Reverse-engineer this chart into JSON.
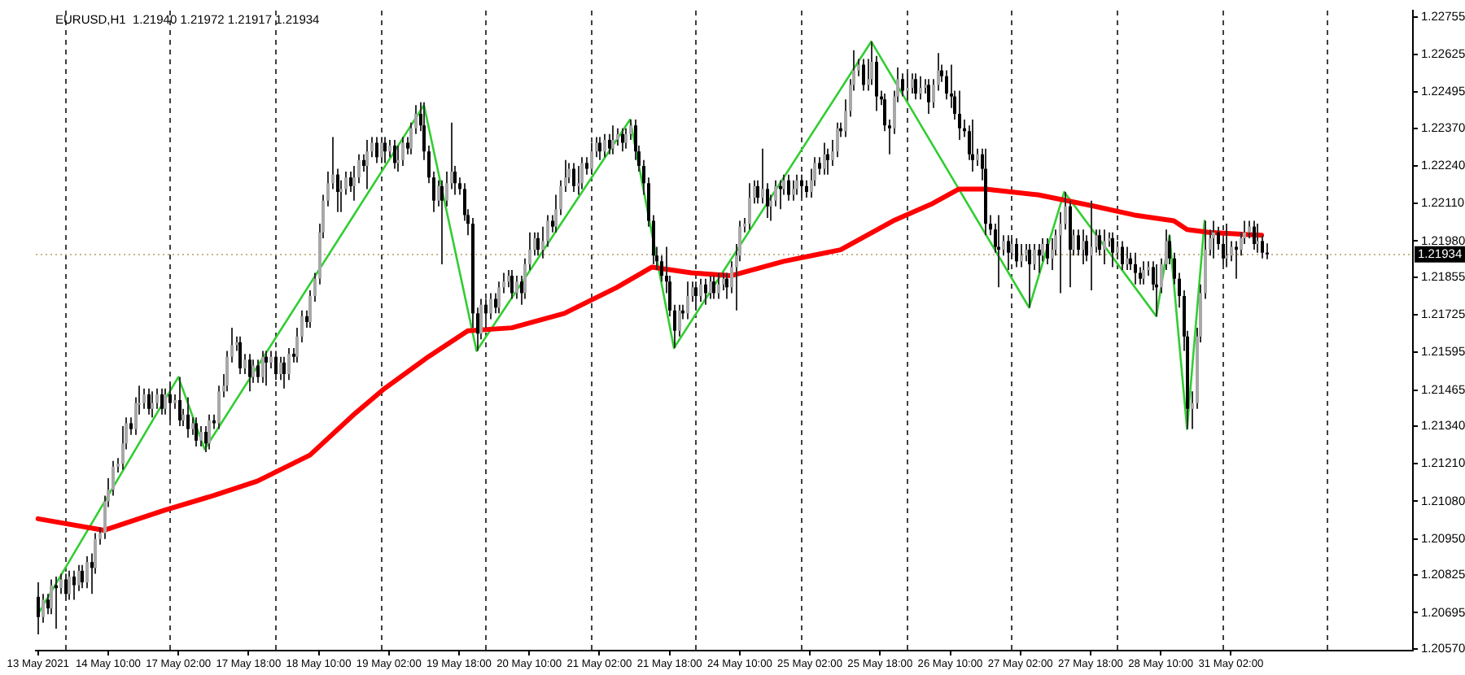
{
  "chart_data": {
    "type": "candlestick",
    "title": "EURUSD,H1  1.21940 1.21972 1.21917 1.21934",
    "categories": [
      "13 May 2021",
      null,
      null,
      null,
      null,
      null,
      null,
      null,
      null,
      null,
      null,
      null,
      null,
      null,
      null,
      null,
      "14 May 10:00",
      null,
      null,
      null,
      null,
      null,
      null,
      null,
      null,
      null,
      null,
      null,
      null,
      null,
      null,
      null,
      "17 May 02:00",
      null,
      null,
      null,
      null,
      null,
      null,
      null,
      null,
      null,
      null,
      null,
      null,
      null,
      null,
      null,
      "17 May 18:00",
      null,
      null,
      null,
      null,
      null,
      null,
      null,
      null,
      null,
      null,
      null,
      null,
      null,
      null,
      null,
      "18 May 10:00",
      null,
      null,
      null,
      null,
      null,
      null,
      null,
      null,
      null,
      null,
      null,
      null,
      null,
      null,
      null,
      "19 May 02:00",
      null,
      null,
      null,
      null,
      null,
      null,
      null,
      null,
      null,
      null,
      null,
      null,
      null,
      null,
      null,
      "19 May 18:00",
      null,
      null,
      null,
      null,
      null,
      null,
      null,
      null,
      null,
      null,
      null,
      null,
      null,
      null,
      null,
      "20 May 10:00",
      null,
      null,
      null,
      null,
      null,
      null,
      null,
      null,
      null,
      null,
      null,
      null,
      null,
      null,
      null,
      "21 May 02:00",
      null,
      null,
      null,
      null,
      null,
      null,
      null,
      null,
      null,
      null,
      null,
      null,
      null,
      null,
      null,
      "21 May 18:00",
      null,
      null,
      null,
      null,
      null,
      null,
      null,
      null,
      null,
      null,
      null,
      null,
      null,
      null,
      null,
      "24 May 10:00",
      null,
      null,
      null,
      null,
      null,
      null,
      null,
      null,
      null,
      null,
      null,
      null,
      null,
      null,
      null,
      "25 May 02:00",
      null,
      null,
      null,
      null,
      null,
      null,
      null,
      null,
      null,
      null,
      null,
      null,
      null,
      null,
      null,
      "25 May 18:00",
      null,
      null,
      null,
      null,
      null,
      null,
      null,
      null,
      null,
      null,
      null,
      null,
      null,
      null,
      null,
      "26 May 10:00",
      null,
      null,
      null,
      null,
      null,
      null,
      null,
      null,
      null,
      null,
      null,
      null,
      null,
      null,
      null,
      "27 May 02:00",
      null,
      null,
      null,
      null,
      null,
      null,
      null,
      null,
      null,
      null,
      null,
      null,
      null,
      null,
      null,
      "27 May 18:00",
      null,
      null,
      null,
      null,
      null,
      null,
      null,
      null,
      null,
      null,
      null,
      null,
      null,
      null,
      null,
      "28 May 10:00",
      null,
      null,
      null,
      null,
      null,
      null,
      null,
      null,
      null,
      null,
      null,
      null,
      null,
      null,
      null,
      "31 May 02:00",
      null,
      null,
      null,
      null,
      null,
      null,
      null,
      null,
      null,
      null,
      null,
      null,
      null,
      null,
      null,
      null,
      null,
      null,
      null,
      null,
      null,
      null,
      null,
      null,
      null,
      null,
      null,
      null,
      null,
      null,
      null,
      null,
      null,
      null,
      null,
      null,
      null,
      null,
      null,
      null,
      null
    ],
    "ohlc": [
      [
        1.2075,
        1.208,
        1.2062,
        1.2068
      ],
      [
        1.2068,
        1.2076,
        1.2066,
        1.2074
      ],
      [
        1.2074,
        1.2076,
        1.2069,
        1.2071
      ],
      [
        1.2071,
        1.2081,
        1.2069,
        1.2079
      ],
      [
        1.2079,
        1.2082,
        1.2064,
        1.2078
      ],
      [
        1.2078,
        1.2083,
        1.2076,
        1.2081
      ],
      [
        1.2081,
        1.2083,
        1.2074,
        1.2076
      ],
      [
        1.2076,
        1.2084,
        1.2074,
        1.2082
      ],
      [
        1.2082,
        1.2084,
        1.2074,
        1.2079
      ],
      [
        1.2079,
        1.2086,
        1.2077,
        1.2084
      ],
      [
        1.2084,
        1.2086,
        1.2078,
        1.208
      ],
      [
        1.208,
        1.2089,
        1.2078,
        1.2087
      ],
      [
        1.2087,
        1.209,
        1.2076,
        1.2085
      ],
      [
        1.2085,
        1.2097,
        1.2083,
        1.2095
      ],
      [
        1.2095,
        1.2099,
        1.2093,
        1.2097
      ],
      [
        1.2097,
        1.211,
        1.2095,
        1.2108
      ],
      [
        1.2108,
        1.2116,
        1.2106,
        1.2112
      ],
      [
        1.2112,
        1.2122,
        1.211,
        1.212
      ],
      [
        1.212,
        1.2123,
        1.2118,
        1.2121
      ],
      [
        1.2121,
        1.2134,
        1.2119,
        1.2128
      ],
      [
        1.2128,
        1.2137,
        1.2126,
        1.2135
      ],
      [
        1.2135,
        1.2137,
        1.2131,
        1.2133
      ],
      [
        1.2133,
        1.2144,
        1.2131,
        1.2142
      ],
      [
        1.2142,
        1.2148,
        1.2138,
        1.2142
      ],
      [
        1.2142,
        1.2147,
        1.214,
        1.2145
      ],
      [
        1.2145,
        1.2147,
        1.2138,
        1.214
      ],
      [
        1.214,
        1.2146,
        1.2137,
        1.2142
      ],
      [
        1.2142,
        1.2147,
        1.214,
        1.2145
      ],
      [
        1.2145,
        1.2147,
        1.2138,
        1.214
      ],
      [
        1.214,
        1.2147,
        1.2138,
        1.2145
      ],
      [
        1.2145,
        1.2149,
        1.2136,
        1.2142
      ],
      [
        1.2142,
        1.2145,
        1.214,
        1.2143
      ],
      [
        1.2143,
        1.2151,
        1.2134,
        1.2136
      ],
      [
        1.2136,
        1.214,
        1.2134,
        1.2138
      ],
      [
        1.2138,
        1.2144,
        1.213,
        1.2133
      ],
      [
        1.2133,
        1.2137,
        1.2131,
        1.2135
      ],
      [
        1.2135,
        1.2137,
        1.2127,
        1.2129
      ],
      [
        1.2129,
        1.2134,
        1.2127,
        1.2132
      ],
      [
        1.2132,
        1.2134,
        1.2125,
        1.2128
      ],
      [
        1.2128,
        1.2138,
        1.2126,
        1.2136
      ],
      [
        1.2136,
        1.2138,
        1.2133,
        1.2135
      ],
      [
        1.2135,
        1.2148,
        1.2133,
        1.2146
      ],
      [
        1.2146,
        1.2152,
        1.2144,
        1.2148
      ],
      [
        1.2148,
        1.216,
        1.2146,
        1.2158
      ],
      [
        1.2158,
        1.2168,
        1.2156,
        1.2162
      ],
      [
        1.2162,
        1.2165,
        1.216,
        1.2163
      ],
      [
        1.2163,
        1.2165,
        1.2152,
        1.2154
      ],
      [
        1.2154,
        1.2159,
        1.2152,
        1.2157
      ],
      [
        1.2157,
        1.2159,
        1.2146,
        1.2151
      ],
      [
        1.2151,
        1.2157,
        1.2149,
        1.2155
      ],
      [
        1.2155,
        1.2157,
        1.2149,
        1.2151
      ],
      [
        1.2151,
        1.216,
        1.2149,
        1.2158
      ],
      [
        1.2158,
        1.216,
        1.2148,
        1.2156
      ],
      [
        1.2156,
        1.216,
        1.2154,
        1.2158
      ],
      [
        1.2158,
        1.216,
        1.215,
        1.2152
      ],
      [
        1.2152,
        1.2158,
        1.215,
        1.2156
      ],
      [
        1.2156,
        1.2158,
        1.2147,
        1.2152
      ],
      [
        1.2152,
        1.2161,
        1.215,
        1.2159
      ],
      [
        1.2159,
        1.2161,
        1.2156,
        1.2158
      ],
      [
        1.2158,
        1.2168,
        1.2156,
        1.2165
      ],
      [
        1.2165,
        1.2174,
        1.2163,
        1.2172
      ],
      [
        1.2172,
        1.2174,
        1.2168,
        1.217
      ],
      [
        1.217,
        1.2181,
        1.2168,
        1.2179
      ],
      [
        1.2179,
        1.2187,
        1.2177,
        1.2185
      ],
      [
        1.2185,
        1.2204,
        1.2183,
        1.2201
      ],
      [
        1.2201,
        1.2214,
        1.2199,
        1.2212
      ],
      [
        1.2212,
        1.2222,
        1.221,
        1.2218
      ],
      [
        1.2218,
        1.2234,
        1.2216,
        1.2221
      ],
      [
        1.2221,
        1.2223,
        1.2208,
        1.2215
      ],
      [
        1.2215,
        1.2219,
        1.2208,
        1.2216
      ],
      [
        1.2216,
        1.2222,
        1.2214,
        1.222
      ],
      [
        1.222,
        1.2222,
        1.2215,
        1.2217
      ],
      [
        1.2217,
        1.2224,
        1.2212,
        1.222
      ],
      [
        1.222,
        1.2228,
        1.2218,
        1.2226
      ],
      [
        1.2226,
        1.2228,
        1.2222,
        1.2224
      ],
      [
        1.2224,
        1.2233,
        1.2216,
        1.2229
      ],
      [
        1.2229,
        1.2234,
        1.2227,
        1.2232
      ],
      [
        1.2232,
        1.2234,
        1.2225,
        1.2227
      ],
      [
        1.2227,
        1.2234,
        1.2225,
        1.2232
      ],
      [
        1.2232,
        1.2234,
        1.2225,
        1.2229
      ],
      [
        1.2229,
        1.2233,
        1.2227,
        1.2231
      ],
      [
        1.2231,
        1.2233,
        1.2223,
        1.2225
      ],
      [
        1.2225,
        1.2231,
        1.2222,
        1.2226
      ],
      [
        1.2226,
        1.2234,
        1.2224,
        1.2232
      ],
      [
        1.2232,
        1.2234,
        1.2228,
        1.223
      ],
      [
        1.223,
        1.2239,
        1.2228,
        1.2237
      ],
      [
        1.2237,
        1.2245,
        1.2235,
        1.2242
      ],
      [
        1.2242,
        1.2246,
        1.2236,
        1.2238
      ],
      [
        1.2238,
        1.2246,
        1.2226,
        1.2229
      ],
      [
        1.2229,
        1.2231,
        1.2218,
        1.222
      ],
      [
        1.222,
        1.2222,
        1.2208,
        1.2212
      ],
      [
        1.2212,
        1.2219,
        1.221,
        1.2217
      ],
      [
        1.2217,
        1.2219,
        1.219,
        1.2212
      ],
      [
        1.2212,
        1.2222,
        1.221,
        1.2218
      ],
      [
        1.2218,
        1.2239,
        1.2216,
        1.2222
      ],
      [
        1.2222,
        1.2224,
        1.2214,
        1.2218
      ],
      [
        1.2218,
        1.222,
        1.2214,
        1.2216
      ],
      [
        1.2216,
        1.2218,
        1.2205,
        1.2207
      ],
      [
        1.2207,
        1.2209,
        1.22,
        1.2204
      ],
      [
        1.2204,
        1.2206,
        1.2168,
        1.2173
      ],
      [
        1.2173,
        1.2175,
        1.216,
        1.2166
      ],
      [
        1.2166,
        1.2178,
        1.2164,
        1.2176
      ],
      [
        1.2176,
        1.2178,
        1.2168,
        1.2173
      ],
      [
        1.2173,
        1.218,
        1.2171,
        1.2178
      ],
      [
        1.2178,
        1.218,
        1.2173,
        1.2175
      ],
      [
        1.2175,
        1.2184,
        1.2173,
        1.2182
      ],
      [
        1.2182,
        1.2187,
        1.218,
        1.2184
      ],
      [
        1.2184,
        1.2188,
        1.2182,
        1.2186
      ],
      [
        1.2186,
        1.2188,
        1.2178,
        1.218
      ],
      [
        1.218,
        1.2186,
        1.2178,
        1.2184
      ],
      [
        1.2184,
        1.2186,
        1.2176,
        1.218
      ],
      [
        1.218,
        1.2192,
        1.2178,
        1.219
      ],
      [
        1.219,
        1.2201,
        1.2188,
        1.2195
      ],
      [
        1.2195,
        1.2201,
        1.2193,
        1.2199
      ],
      [
        1.2199,
        1.2201,
        1.2193,
        1.2195
      ],
      [
        1.2195,
        1.2203,
        1.2192,
        1.2198
      ],
      [
        1.2198,
        1.2207,
        1.2196,
        1.2205
      ],
      [
        1.2205,
        1.2207,
        1.2201,
        1.2203
      ],
      [
        1.2203,
        1.2214,
        1.2201,
        1.2209
      ],
      [
        1.2209,
        1.2219,
        1.2207,
        1.2217
      ],
      [
        1.2217,
        1.2226,
        1.2215,
        1.222
      ],
      [
        1.222,
        1.2225,
        1.2218,
        1.2223
      ],
      [
        1.2223,
        1.2225,
        1.2215,
        1.2217
      ],
      [
        1.2217,
        1.2224,
        1.2214,
        1.2218
      ],
      [
        1.2218,
        1.2227,
        1.2216,
        1.2225
      ],
      [
        1.2225,
        1.2227,
        1.2221,
        1.2223
      ],
      [
        1.2223,
        1.2232,
        1.2221,
        1.2229
      ],
      [
        1.2229,
        1.2234,
        1.2227,
        1.2232
      ],
      [
        1.2232,
        1.2234,
        1.2226,
        1.2229
      ],
      [
        1.2229,
        1.2235,
        1.2227,
        1.2233
      ],
      [
        1.2233,
        1.2235,
        1.2228,
        1.223
      ],
      [
        1.223,
        1.2238,
        1.2228,
        1.2233
      ],
      [
        1.2233,
        1.2237,
        1.2231,
        1.2235
      ],
      [
        1.2235,
        1.2237,
        1.2229,
        1.2232
      ],
      [
        1.2232,
        1.2237,
        1.223,
        1.2235
      ],
      [
        1.2235,
        1.224,
        1.2233,
        1.2238
      ],
      [
        1.2238,
        1.224,
        1.2226,
        1.2229
      ],
      [
        1.2229,
        1.2231,
        1.2222,
        1.2224
      ],
      [
        1.2224,
        1.2226,
        1.2214,
        1.2218
      ],
      [
        1.2218,
        1.222,
        1.2203,
        1.2205
      ],
      [
        1.2205,
        1.2207,
        1.219,
        1.2193
      ],
      [
        1.2193,
        1.2196,
        1.2188,
        1.2191
      ],
      [
        1.2191,
        1.2193,
        1.2184,
        1.2186
      ],
      [
        1.2186,
        1.2196,
        1.218,
        1.2184
      ],
      [
        1.2184,
        1.2186,
        1.2172,
        1.2174
      ],
      [
        1.2174,
        1.2176,
        1.2161,
        1.2167
      ],
      [
        1.2167,
        1.2176,
        1.2165,
        1.2174
      ],
      [
        1.2174,
        1.2176,
        1.2171,
        1.2173
      ],
      [
        1.2173,
        1.2184,
        1.2171,
        1.2179
      ],
      [
        1.2179,
        1.2184,
        1.2177,
        1.2182
      ],
      [
        1.2182,
        1.2184,
        1.2174,
        1.2179
      ],
      [
        1.2179,
        1.2185,
        1.2177,
        1.2183
      ],
      [
        1.2183,
        1.2185,
        1.2176,
        1.218
      ],
      [
        1.218,
        1.2186,
        1.2178,
        1.2184
      ],
      [
        1.2184,
        1.2186,
        1.2178,
        1.218
      ],
      [
        1.218,
        1.2187,
        1.2178,
        1.2183
      ],
      [
        1.2183,
        1.2187,
        1.2181,
        1.2185
      ],
      [
        1.2185,
        1.2187,
        1.2178,
        1.2182
      ],
      [
        1.2182,
        1.2191,
        1.218,
        1.2189
      ],
      [
        1.2189,
        1.2197,
        1.2174,
        1.2193
      ],
      [
        1.2193,
        1.2205,
        1.2191,
        1.2203
      ],
      [
        1.2203,
        1.2206,
        1.2201,
        1.2204
      ],
      [
        1.2204,
        1.2218,
        1.2202,
        1.2213
      ],
      [
        1.2213,
        1.2219,
        1.2211,
        1.2217
      ],
      [
        1.2217,
        1.2219,
        1.2211,
        1.2213
      ],
      [
        1.2213,
        1.223,
        1.2211,
        1.2216
      ],
      [
        1.2216,
        1.2218,
        1.2206,
        1.221
      ],
      [
        1.221,
        1.2214,
        1.2205,
        1.2212
      ],
      [
        1.2212,
        1.2219,
        1.221,
        1.2217
      ],
      [
        1.2217,
        1.2219,
        1.2209,
        1.2216
      ],
      [
        1.2216,
        1.2221,
        1.2214,
        1.2219
      ],
      [
        1.2219,
        1.2221,
        1.2212,
        1.2214
      ],
      [
        1.2214,
        1.2219,
        1.2212,
        1.2216
      ],
      [
        1.2216,
        1.2221,
        1.2214,
        1.2219
      ],
      [
        1.2219,
        1.2221,
        1.2213,
        1.2217
      ],
      [
        1.2217,
        1.2219,
        1.2213,
        1.2215
      ],
      [
        1.2215,
        1.2223,
        1.2213,
        1.2219
      ],
      [
        1.2219,
        1.2227,
        1.2217,
        1.2225
      ],
      [
        1.2225,
        1.2227,
        1.2221,
        1.2223
      ],
      [
        1.2223,
        1.2232,
        1.2221,
        1.2228
      ],
      [
        1.2228,
        1.223,
        1.2221,
        1.2226
      ],
      [
        1.2226,
        1.2233,
        1.2224,
        1.2229
      ],
      [
        1.2229,
        1.2239,
        1.2227,
        1.2237
      ],
      [
        1.2237,
        1.2239,
        1.2234,
        1.2236
      ],
      [
        1.2236,
        1.2247,
        1.2234,
        1.2243
      ],
      [
        1.2243,
        1.2254,
        1.2241,
        1.2252
      ],
      [
        1.2252,
        1.2264,
        1.225,
        1.2257
      ],
      [
        1.2257,
        1.2261,
        1.2255,
        1.2259
      ],
      [
        1.2259,
        1.2261,
        1.225,
        1.2252
      ],
      [
        1.2252,
        1.2261,
        1.225,
        1.2254
      ],
      [
        1.2254,
        1.2267,
        1.2252,
        1.226
      ],
      [
        1.226,
        1.2262,
        1.2243,
        1.2248
      ],
      [
        1.2248,
        1.225,
        1.2245,
        1.2247
      ],
      [
        1.2247,
        1.2249,
        1.2236,
        1.2238
      ],
      [
        1.2238,
        1.224,
        1.2228,
        1.2237
      ],
      [
        1.2237,
        1.225,
        1.2235,
        1.2248
      ],
      [
        1.2248,
        1.2258,
        1.2246,
        1.2254
      ],
      [
        1.2254,
        1.2256,
        1.2248,
        1.225
      ],
      [
        1.225,
        1.2256,
        1.2247,
        1.2251
      ],
      [
        1.2251,
        1.2256,
        1.2249,
        1.2254
      ],
      [
        1.2254,
        1.2256,
        1.2247,
        1.2249
      ],
      [
        1.2249,
        1.2255,
        1.2247,
        1.2251
      ],
      [
        1.2251,
        1.2254,
        1.2249,
        1.2252
      ],
      [
        1.2252,
        1.2254,
        1.2242,
        1.2246
      ],
      [
        1.2246,
        1.2254,
        1.2244,
        1.2252
      ],
      [
        1.2252,
        1.2263,
        1.225,
        1.2257
      ],
      [
        1.2257,
        1.2259,
        1.2253,
        1.2255
      ],
      [
        1.2255,
        1.2257,
        1.2247,
        1.2249
      ],
      [
        1.2249,
        1.2259,
        1.2244,
        1.2248
      ],
      [
        1.2248,
        1.225,
        1.224,
        1.2242
      ],
      [
        1.2242,
        1.225,
        1.2233,
        1.2237
      ],
      [
        1.2237,
        1.224,
        1.2234,
        1.2236
      ],
      [
        1.2236,
        1.2238,
        1.2226,
        1.2228
      ],
      [
        1.2228,
        1.224,
        1.2222,
        1.2226
      ],
      [
        1.2226,
        1.223,
        1.2224,
        1.2228
      ],
      [
        1.2228,
        1.223,
        1.2219,
        1.2223
      ],
      [
        1.2223,
        1.223,
        1.22,
        1.2204
      ],
      [
        1.2204,
        1.2207,
        1.22,
        1.2202
      ],
      [
        1.2202,
        1.2204,
        1.2194,
        1.2196
      ],
      [
        1.2196,
        1.2207,
        1.2182,
        1.2195
      ],
      [
        1.2195,
        1.22,
        1.2193,
        1.2198
      ],
      [
        1.2198,
        1.22,
        1.2188,
        1.2194
      ],
      [
        1.2194,
        1.2199,
        1.2192,
        1.2197
      ],
      [
        1.2197,
        1.2199,
        1.2189,
        1.2191
      ],
      [
        1.2191,
        1.2197,
        1.2189,
        1.2193
      ],
      [
        1.2193,
        1.2197,
        1.2191,
        1.2195
      ],
      [
        1.2195,
        1.2197,
        1.2175,
        1.219
      ],
      [
        1.219,
        1.2197,
        1.2188,
        1.2195
      ],
      [
        1.2195,
        1.2197,
        1.2187,
        1.2193
      ],
      [
        1.2193,
        1.2199,
        1.2191,
        1.2197
      ],
      [
        1.2197,
        1.2199,
        1.219,
        1.2192
      ],
      [
        1.2192,
        1.2199,
        1.2188,
        1.2195
      ],
      [
        1.2195,
        1.2202,
        1.2193,
        1.22
      ],
      [
        1.22,
        1.2208,
        1.218,
        1.2204
      ],
      [
        1.2204,
        1.2215,
        1.2202,
        1.221
      ],
      [
        1.221,
        1.2212,
        1.2182,
        1.2195
      ],
      [
        1.2195,
        1.2202,
        1.2193,
        1.22
      ],
      [
        1.22,
        1.2202,
        1.2193,
        1.2195
      ],
      [
        1.2195,
        1.2202,
        1.219,
        1.2198
      ],
      [
        1.2198,
        1.22,
        1.2191,
        1.2193
      ],
      [
        1.2193,
        1.2212,
        1.2181,
        1.2196
      ],
      [
        1.2196,
        1.2202,
        1.2194,
        1.22
      ],
      [
        1.22,
        1.2202,
        1.2193,
        1.2195
      ],
      [
        1.2195,
        1.2202,
        1.219,
        1.2198
      ],
      [
        1.2198,
        1.2201,
        1.2196,
        1.2199
      ],
      [
        1.2199,
        1.2201,
        1.2189,
        1.2194
      ],
      [
        1.2194,
        1.2198,
        1.2192,
        1.2196
      ],
      [
        1.2196,
        1.2198,
        1.2188,
        1.219
      ],
      [
        1.219,
        1.2196,
        1.2188,
        1.2192
      ],
      [
        1.2192,
        1.2194,
        1.2188,
        1.219
      ],
      [
        1.219,
        1.2194,
        1.2183,
        1.2187
      ],
      [
        1.2187,
        1.2189,
        1.2183,
        1.2185
      ],
      [
        1.2185,
        1.2191,
        1.2183,
        1.2188
      ],
      [
        1.2188,
        1.2191,
        1.2186,
        1.2189
      ],
      [
        1.2189,
        1.2191,
        1.2181,
        1.2183
      ],
      [
        1.2183,
        1.219,
        1.2172,
        1.2182
      ],
      [
        1.2182,
        1.2192,
        1.218,
        1.219
      ],
      [
        1.219,
        1.2202,
        1.2188,
        1.2198
      ],
      [
        1.2198,
        1.22,
        1.219,
        1.2192
      ],
      [
        1.2192,
        1.2194,
        1.2183,
        1.2185
      ],
      [
        1.2185,
        1.2187,
        1.2175,
        1.2179
      ],
      [
        1.2179,
        1.2181,
        1.216,
        1.2165
      ],
      [
        1.2165,
        1.2167,
        1.2133,
        1.214
      ],
      [
        1.214,
        1.2146,
        1.2133,
        1.2142
      ],
      [
        1.2142,
        1.2168,
        1.214,
        1.2165
      ],
      [
        1.2165,
        1.2183,
        1.2163,
        1.218
      ],
      [
        1.218,
        1.2205,
        1.2178,
        1.2195
      ],
      [
        1.2195,
        1.2202,
        1.2193,
        1.2199
      ],
      [
        1.2199,
        1.2205,
        1.2192,
        1.2201
      ],
      [
        1.2201,
        1.2203,
        1.2195,
        1.2197
      ],
      [
        1.2197,
        1.2199,
        1.219,
        1.2192
      ],
      [
        1.2192,
        1.2204,
        1.2189,
        1.2193
      ],
      [
        1.2193,
        1.2198,
        1.2191,
        1.2196
      ],
      [
        1.2196,
        1.2198,
        1.2185,
        1.2195
      ],
      [
        1.2195,
        1.2201,
        1.2193,
        1.2199
      ],
      [
        1.2199,
        1.2205,
        1.2197,
        1.2201
      ],
      [
        1.2201,
        1.2205,
        1.2199,
        1.2203
      ],
      [
        1.2203,
        1.2205,
        1.2195,
        1.2197
      ],
      [
        1.2197,
        1.2204,
        1.2194,
        1.2198
      ],
      [
        1.2198,
        1.22,
        1.2192,
        1.2194
      ],
      [
        1.2194,
        1.21972,
        1.21917,
        1.21934
      ],
      null,
      null,
      null,
      null,
      null,
      null,
      null,
      null,
      null,
      null,
      null,
      null,
      null,
      null,
      null,
      null,
      null,
      null,
      null,
      null,
      null,
      null,
      null,
      null,
      null,
      null,
      null,
      null,
      null,
      null,
      null,
      null,
      null
    ],
    "series": [
      {
        "type": "line",
        "color": "#ff0000",
        "values": [
          1.2102,
          null,
          null,
          null,
          null,
          null,
          null,
          null,
          null,
          null,
          null,
          null,
          null,
          null,
          null,
          1.2098,
          null,
          null,
          null,
          null,
          null,
          null,
          null,
          null,
          null,
          null,
          null,
          null,
          null,
          1.2105,
          null,
          null,
          null,
          null,
          null,
          null,
          null,
          null,
          null,
          null,
          1.211,
          null,
          null,
          null,
          null,
          null,
          null,
          null,
          null,
          null,
          1.2115,
          null,
          null,
          null,
          null,
          null,
          null,
          null,
          null,
          null,
          null,
          null,
          1.2124,
          null,
          null,
          null,
          null,
          null,
          null,
          null,
          null,
          null,
          1.2138,
          null,
          null,
          null,
          null,
          null,
          null,
          1.2147,
          null,
          null,
          null,
          null,
          null,
          null,
          null,
          null,
          null,
          1.2158,
          null,
          null,
          null,
          null,
          null,
          null,
          null,
          null,
          1.2167,
          null,
          null,
          null,
          null,
          null,
          null,
          null,
          null,
          null,
          1.2168,
          null,
          null,
          null,
          null,
          null,
          null,
          null,
          null,
          null,
          null,
          null,
          1.2173,
          null,
          null,
          null,
          null,
          null,
          null,
          null,
          null,
          null,
          null,
          null,
          1.2182,
          null,
          null,
          null,
          null,
          null,
          null,
          null,
          1.2189,
          null,
          null,
          null,
          null,
          null,
          null,
          null,
          null,
          1.2187,
          null,
          null,
          null,
          null,
          null,
          null,
          null,
          null,
          1.2186,
          null,
          null,
          null,
          null,
          null,
          null,
          null,
          null,
          null,
          null,
          null,
          1.2191,
          null,
          null,
          null,
          null,
          null,
          null,
          null,
          null,
          null,
          null,
          null,
          null,
          1.2195,
          null,
          null,
          null,
          null,
          null,
          null,
          null,
          null,
          null,
          null,
          null,
          1.2205,
          null,
          null,
          null,
          null,
          null,
          null,
          null,
          null,
          1.2211,
          null,
          null,
          null,
          null,
          null,
          1.2216,
          null,
          null,
          null,
          null,
          null,
          1.2216,
          null,
          null,
          null,
          null,
          null,
          null,
          null,
          null,
          null,
          null,
          null,
          1.2214,
          null,
          null,
          null,
          null,
          null,
          null,
          null,
          null,
          null,
          null,
          null,
          null,
          1.221,
          null,
          null,
          null,
          null,
          null,
          null,
          null,
          null,
          1.2207,
          null,
          null,
          null,
          null,
          null,
          null,
          null,
          null,
          1.2205,
          null,
          null,
          1.2202,
          null,
          null,
          null,
          null,
          1.2201,
          null,
          null,
          null,
          null,
          null,
          null,
          null,
          null,
          null,
          null,
          null,
          1.22,
          null,
          null,
          null,
          null,
          null,
          null,
          null,
          null,
          null,
          null,
          null,
          null,
          null,
          null,
          null,
          null,
          null,
          null,
          null,
          null,
          null,
          null,
          null,
          null,
          null,
          null,
          null,
          null,
          null,
          null,
          null,
          null,
          null,
          null
        ]
      },
      {
        "type": "line",
        "color": "#32cd32",
        "values": [
          1.2069,
          null,
          null,
          null,
          null,
          null,
          null,
          null,
          null,
          null,
          null,
          null,
          null,
          null,
          null,
          null,
          null,
          null,
          null,
          null,
          null,
          null,
          null,
          null,
          null,
          null,
          null,
          null,
          null,
          null,
          null,
          null,
          1.2151,
          null,
          null,
          null,
          null,
          null,
          1.2126,
          null,
          null,
          null,
          null,
          null,
          null,
          null,
          null,
          null,
          null,
          null,
          null,
          null,
          null,
          null,
          null,
          null,
          null,
          null,
          null,
          null,
          null,
          null,
          null,
          null,
          null,
          null,
          null,
          null,
          null,
          null,
          null,
          null,
          null,
          null,
          null,
          null,
          null,
          null,
          null,
          null,
          null,
          null,
          null,
          null,
          null,
          null,
          null,
          null,
          1.2245,
          null,
          null,
          null,
          null,
          null,
          null,
          null,
          null,
          null,
          null,
          null,
          1.216,
          null,
          null,
          null,
          null,
          null,
          null,
          null,
          null,
          null,
          null,
          null,
          null,
          null,
          null,
          null,
          null,
          null,
          null,
          null,
          null,
          null,
          null,
          null,
          null,
          null,
          null,
          null,
          null,
          null,
          null,
          null,
          null,
          null,
          null,
          1.224,
          null,
          null,
          null,
          null,
          null,
          null,
          null,
          null,
          null,
          1.2161,
          null,
          null,
          null,
          null,
          null,
          null,
          null,
          null,
          null,
          null,
          null,
          null,
          null,
          null,
          null,
          null,
          null,
          null,
          null,
          null,
          null,
          null,
          null,
          null,
          null,
          null,
          null,
          null,
          null,
          null,
          null,
          null,
          null,
          null,
          null,
          null,
          null,
          null,
          null,
          null,
          null,
          null,
          null,
          null,
          1.2267,
          null,
          null,
          null,
          null,
          null,
          null,
          null,
          null,
          null,
          null,
          null,
          null,
          null,
          null,
          null,
          null,
          null,
          null,
          null,
          null,
          null,
          null,
          null,
          null,
          null,
          null,
          null,
          null,
          null,
          null,
          null,
          null,
          null,
          null,
          null,
          1.2175,
          null,
          null,
          null,
          null,
          null,
          null,
          null,
          1.2215,
          null,
          null,
          null,
          null,
          null,
          null,
          null,
          null,
          null,
          null,
          null,
          null,
          null,
          null,
          null,
          null,
          null,
          null,
          null,
          null,
          1.2172,
          null,
          null,
          1.22,
          null,
          null,
          null,
          1.2133,
          null,
          null,
          null,
          1.2205,
          null,
          null,
          null,
          null,
          null,
          null,
          null,
          null,
          null,
          null,
          null,
          null,
          null,
          null,
          null,
          null,
          null,
          null,
          null,
          null,
          null,
          null,
          null,
          null,
          null,
          null,
          null,
          null,
          null,
          null,
          null,
          null,
          null,
          null,
          null,
          null,
          null,
          null,
          null,
          null,
          null,
          null,
          null,
          null,
          null,
          null,
          null
        ]
      }
    ],
    "ylim": [
      1.20564,
      1.22777
    ],
    "yticks": [
      1.22755,
      1.22625,
      1.22495,
      {
        "value": 1.2237,
        "label": "1.22370"
      },
      {
        "value": 1.2224,
        "label": "1.22240"
      },
      {
        "value": 1.2211,
        "label": "1.22110"
      },
      {
        "value": 1.2198,
        "label": "1.21980"
      },
      1.21855,
      1.21725,
      1.21595,
      1.21465,
      {
        "value": 1.2134,
        "label": "1.21340"
      },
      {
        "value": 1.2121,
        "label": "1.21210"
      },
      {
        "value": 1.2108,
        "label": "1.21080"
      },
      {
        "value": 1.2095,
        "label": "1.20950"
      },
      1.20825,
      1.20695,
      {
        "value": 1.2057,
        "label": "1.20570"
      }
    ],
    "ref_lines": [
      {
        "axis": "y",
        "value": 1.21934,
        "label": "1.21934",
        "color": "#c8b48c",
        "line_style": "dotted"
      }
    ]
  }
}
